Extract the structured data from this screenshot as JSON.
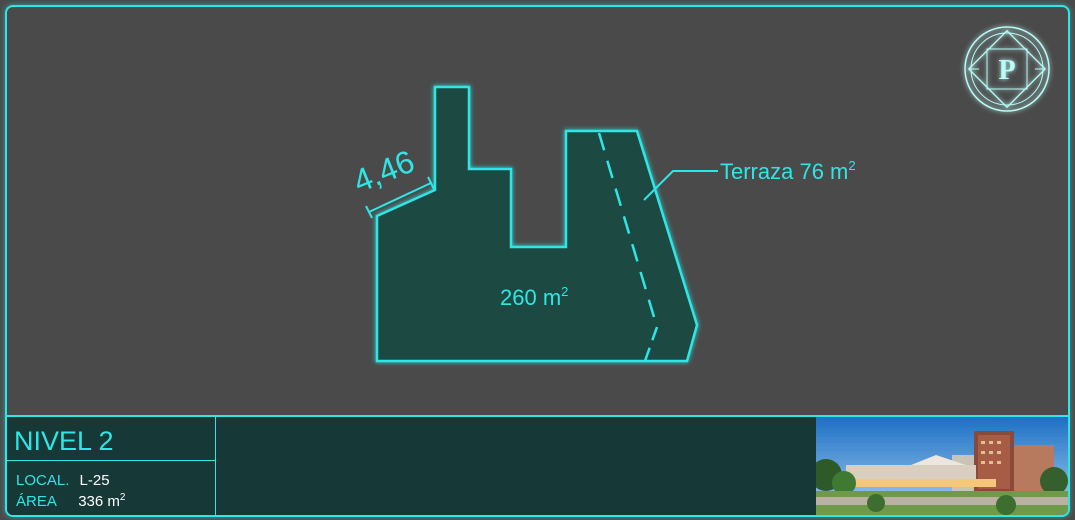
{
  "plan": {
    "dimension_label": "4,46",
    "area_label": "260 m",
    "area_sup": "2",
    "terrace_label": "Terraza 76 m",
    "terrace_sup": "2"
  },
  "logo": {
    "letter": "P"
  },
  "info": {
    "level": "NIVEL 2",
    "local_label": "LOCAL.",
    "local_value": "L-25",
    "area_label": "ÁREA",
    "area_value": "336 m",
    "area_sup": "2"
  },
  "colors": {
    "accent": "#2ee6e6",
    "fill": "#1b4a42",
    "background": "#4a4a4a",
    "panel": "#163836"
  },
  "icons": {
    "logo": "p-emblem-icon",
    "photo": "building-render-image"
  }
}
